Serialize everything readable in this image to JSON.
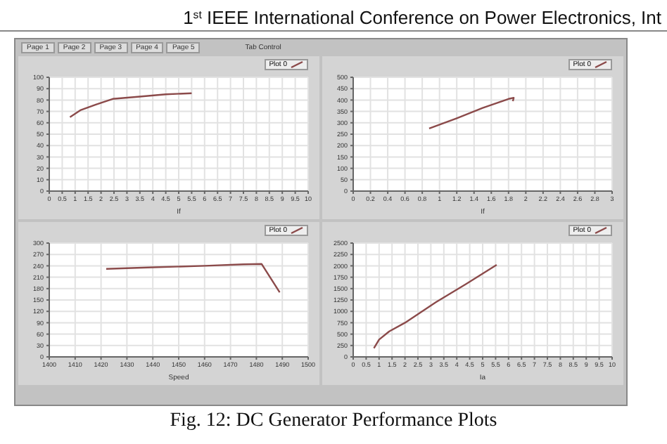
{
  "chart_data": [
    {
      "type": "line",
      "xlabel": "If",
      "annotations": [
        "1$^{st}$ IEEE International Conference on Power Electronics, Int",
        "Page 1",
        "Page 2",
        "Page 3",
        "Page 4",
        "Page 5",
        "Tab Control"
      ],
      "x": [
        0.8,
        1.2,
        1.8,
        2.45,
        3.5,
        4.5,
        5.5
      ],
      "series": [
        {
          "name": "Plot 0",
          "color": "#8b4a4a",
          "values": [
            65,
            71,
            76,
            81,
            83,
            85,
            86
          ]
        }
      ],
      "xlim": [
        0,
        10
      ],
      "xticks": [
        0,
        0.5,
        1,
        1.5,
        2,
        2.5,
        3,
        3.5,
        4,
        4.5,
        5,
        5.5,
        6,
        6.5,
        7,
        7.5,
        8,
        8.5,
        9,
        9.5,
        10
      ],
      "ylim": [
        0,
        100
      ],
      "yticks": [
        0,
        10,
        20,
        30,
        40,
        50,
        60,
        70,
        80,
        90,
        100
      ],
      "grid": true,
      "legend": "top right"
    },
    {
      "type": "line",
      "xlabel": "If",
      "x": [
        0.88,
        1.2,
        1.5,
        1.8,
        1.86,
        1.85
      ],
      "series": [
        {
          "name": "Plot 0",
          "color": "#8b4a4a",
          "values": [
            275,
            320,
            365,
            405,
            410,
            395
          ]
        }
      ],
      "xlim": [
        0,
        3
      ],
      "xticks": [
        0,
        0.2,
        0.4,
        0.6,
        0.8,
        1,
        1.2,
        1.4,
        1.6,
        1.8,
        2,
        2.2,
        2.4,
        2.6,
        2.8,
        3
      ],
      "ylim": [
        0,
        500
      ],
      "yticks": [
        0,
        50,
        100,
        150,
        200,
        250,
        300,
        350,
        400,
        450,
        500
      ],
      "grid": true,
      "legend": "top right"
    },
    {
      "type": "line",
      "xlabel": "Speed",
      "x": [
        1422,
        1440,
        1460,
        1475,
        1482,
        1489
      ],
      "series": [
        {
          "name": "Plot 0",
          "color": "#8b4a4a",
          "values": [
            232,
            236,
            240,
            244,
            245,
            170
          ]
        }
      ],
      "xlim": [
        1400,
        1500
      ],
      "xticks": [
        1400,
        1410,
        1420,
        1430,
        1440,
        1450,
        1460,
        1470,
        1480,
        1490,
        1500
      ],
      "ylim": [
        0,
        300
      ],
      "yticks": [
        0,
        30,
        60,
        90,
        120,
        150,
        180,
        210,
        240,
        270,
        300
      ],
      "grid": true,
      "legend": "top right"
    },
    {
      "type": "line",
      "xlabel": "Ia",
      "annotations": [
        "Fig. 12: DC Generator Performance Plots"
      ],
      "x": [
        0.8,
        1.0,
        1.39,
        2.0,
        3.19,
        4.36,
        5.54
      ],
      "series": [
        {
          "name": "Plot 0",
          "color": "#8b4a4a",
          "values": [
            190,
            380,
            560,
            750,
            1200,
            1600,
            2020
          ]
        }
      ],
      "xlim": [
        0,
        10
      ],
      "xticks": [
        0,
        0.5,
        1,
        1.5,
        2,
        2.5,
        3,
        3.5,
        4,
        4.5,
        5,
        5.5,
        6,
        6.5,
        7,
        7.5,
        8,
        8.5,
        9,
        9.5,
        10
      ],
      "ylim": [
        0,
        2500
      ],
      "yticks": [
        0,
        250,
        500,
        750,
        1000,
        1250,
        1500,
        1750,
        2000,
        2250,
        2500
      ],
      "grid": true,
      "legend": "top right"
    }
  ]
}
